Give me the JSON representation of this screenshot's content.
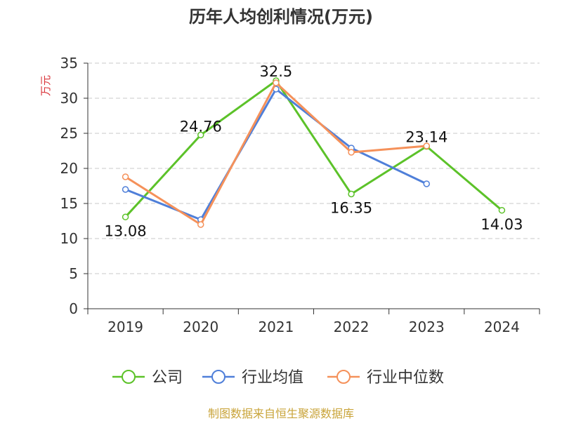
{
  "chart_data": {
    "type": "line",
    "title": "历年人均创利情况(万元)",
    "ylabel": "万元",
    "xlabel": "",
    "categories": [
      "2019",
      "2020",
      "2021",
      "2022",
      "2023",
      "2024"
    ],
    "ylim": [
      0,
      35
    ],
    "yticks": [
      0,
      5,
      10,
      15,
      20,
      25,
      30,
      35
    ],
    "grid": true,
    "legend_position": "bottom",
    "series": [
      {
        "name": "公司",
        "color": "#5cc229",
        "values": [
          13.08,
          24.76,
          32.5,
          16.35,
          23.14,
          14.03
        ],
        "labels": [
          "13.08",
          "24.76",
          "32.5",
          "16.35",
          "23.14",
          "14.03"
        ]
      },
      {
        "name": "行业均值",
        "color": "#4f7fd9",
        "values": [
          17.0,
          12.7,
          31.3,
          22.9,
          17.8,
          null
        ],
        "labels": []
      },
      {
        "name": "行业中位数",
        "color": "#f5915a",
        "values": [
          18.8,
          12.0,
          32.2,
          22.3,
          23.2,
          null
        ],
        "labels": []
      }
    ]
  },
  "footer": {
    "source": "制图数据来自恒生聚源数据库",
    "source_color": "#c9a43a"
  },
  "colors": {
    "title": "#333333",
    "axis": "#333333",
    "grid": "#c8c8c8",
    "ylabel": "#d9343a"
  }
}
